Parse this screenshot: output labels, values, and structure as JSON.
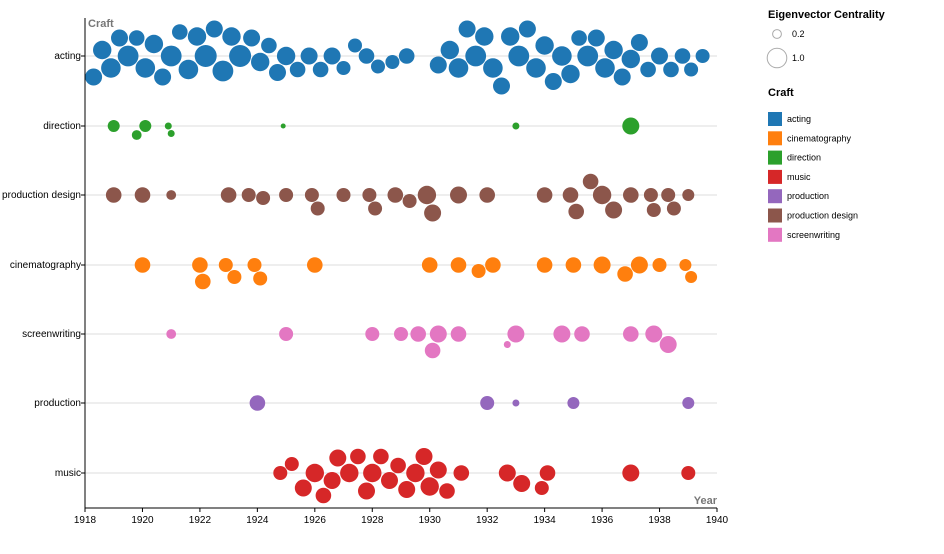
{
  "chart_data": {
    "type": "scatter",
    "subtype": "beeswarm",
    "x_axis": {
      "title": "Year",
      "domain": [
        1918,
        1940
      ],
      "ticks": [
        1918,
        1920,
        1922,
        1924,
        1926,
        1928,
        1930,
        1932,
        1934,
        1936,
        1938,
        1940
      ]
    },
    "y_axis": {
      "title": "Craft",
      "categories": [
        "acting",
        "direction",
        "production design",
        "cinematography",
        "screenwriting",
        "production",
        "music"
      ]
    },
    "size_legend": {
      "title": "Eigenvector Centrality",
      "entries": [
        {
          "label": "0.2",
          "value": 0.2
        },
        {
          "label": "1.0",
          "value": 1.0
        }
      ]
    },
    "color_legend": {
      "title": "Craft",
      "entries": [
        {
          "label": "acting",
          "color": "#1f77b4"
        },
        {
          "label": "cinematography",
          "color": "#ff7f0e"
        },
        {
          "label": "direction",
          "color": "#2ca02c"
        },
        {
          "label": "music",
          "color": "#d62728"
        },
        {
          "label": "production",
          "color": "#9467bd"
        },
        {
          "label": "production design",
          "color": "#8c564b"
        },
        {
          "label": "screenwriting",
          "color": "#e377c2"
        }
      ]
    },
    "legend_position": "right",
    "grid": "horizontal",
    "series": [
      {
        "name": "acting",
        "points": [
          [
            1918.3,
            0.6
          ],
          [
            1918.6,
            0.7
          ],
          [
            1918.9,
            0.8
          ],
          [
            1919.2,
            0.6
          ],
          [
            1919.5,
            0.9
          ],
          [
            1919.8,
            0.5
          ],
          [
            1920.1,
            0.8
          ],
          [
            1920.4,
            0.7
          ],
          [
            1920.7,
            0.6
          ],
          [
            1921.0,
            0.9
          ],
          [
            1921.3,
            0.5
          ],
          [
            1921.6,
            0.8
          ],
          [
            1921.9,
            0.7
          ],
          [
            1922.2,
            1.0
          ],
          [
            1922.5,
            0.6
          ],
          [
            1922.8,
            0.9
          ],
          [
            1923.1,
            0.7
          ],
          [
            1923.4,
            1.0
          ],
          [
            1923.8,
            0.6
          ],
          [
            1924.1,
            0.7
          ],
          [
            1924.4,
            0.5
          ],
          [
            1924.7,
            0.6
          ],
          [
            1925.0,
            0.7
          ],
          [
            1925.4,
            0.5
          ],
          [
            1925.8,
            0.6
          ],
          [
            1926.2,
            0.5
          ],
          [
            1926.6,
            0.6
          ],
          [
            1927.0,
            0.4
          ],
          [
            1927.4,
            0.4
          ],
          [
            1927.8,
            0.5
          ],
          [
            1928.2,
            0.4
          ],
          [
            1928.7,
            0.4
          ],
          [
            1929.2,
            0.5
          ],
          [
            1930.3,
            0.6
          ],
          [
            1930.7,
            0.7
          ],
          [
            1931.0,
            0.8
          ],
          [
            1931.3,
            0.6
          ],
          [
            1931.6,
            0.9
          ],
          [
            1931.9,
            0.7
          ],
          [
            1932.2,
            0.8
          ],
          [
            1932.5,
            0.6
          ],
          [
            1932.8,
            0.7
          ],
          [
            1933.1,
            0.9
          ],
          [
            1933.4,
            0.6
          ],
          [
            1933.7,
            0.8
          ],
          [
            1934.0,
            0.7
          ],
          [
            1934.3,
            0.6
          ],
          [
            1934.6,
            0.8
          ],
          [
            1934.9,
            0.7
          ],
          [
            1935.2,
            0.5
          ],
          [
            1935.5,
            0.9
          ],
          [
            1935.8,
            0.6
          ],
          [
            1936.1,
            0.8
          ],
          [
            1936.4,
            0.7
          ],
          [
            1936.7,
            0.6
          ],
          [
            1937.0,
            0.7
          ],
          [
            1937.3,
            0.6
          ],
          [
            1937.6,
            0.5
          ],
          [
            1938.0,
            0.6
          ],
          [
            1938.4,
            0.5
          ],
          [
            1938.8,
            0.5
          ],
          [
            1939.1,
            0.4
          ],
          [
            1939.5,
            0.4
          ]
        ]
      },
      {
        "name": "direction",
        "points": [
          [
            1919.0,
            0.3
          ],
          [
            1919.8,
            0.2
          ],
          [
            1920.1,
            0.3
          ],
          [
            1920.9,
            0.1
          ],
          [
            1921.0,
            0.1
          ],
          [
            1924.9,
            0.05
          ],
          [
            1933.0,
            0.1
          ],
          [
            1937.0,
            0.6
          ]
        ]
      },
      {
        "name": "production design",
        "points": [
          [
            1919.0,
            0.5
          ],
          [
            1920.0,
            0.5
          ],
          [
            1921.0,
            0.2
          ],
          [
            1923.0,
            0.5
          ],
          [
            1923.7,
            0.4
          ],
          [
            1924.2,
            0.4
          ],
          [
            1925.0,
            0.4
          ],
          [
            1925.9,
            0.4
          ],
          [
            1926.1,
            0.4
          ],
          [
            1927.0,
            0.4
          ],
          [
            1927.9,
            0.4
          ],
          [
            1928.1,
            0.4
          ],
          [
            1928.8,
            0.5
          ],
          [
            1929.3,
            0.4
          ],
          [
            1929.9,
            0.7
          ],
          [
            1930.1,
            0.6
          ],
          [
            1931.0,
            0.6
          ],
          [
            1932.0,
            0.5
          ],
          [
            1934.0,
            0.5
          ],
          [
            1934.9,
            0.5
          ],
          [
            1935.1,
            0.5
          ],
          [
            1935.6,
            0.5
          ],
          [
            1936.0,
            0.7
          ],
          [
            1936.4,
            0.6
          ],
          [
            1937.0,
            0.5
          ],
          [
            1937.7,
            0.4
          ],
          [
            1937.8,
            0.4
          ],
          [
            1938.3,
            0.4
          ],
          [
            1938.5,
            0.4
          ],
          [
            1939.0,
            0.3
          ]
        ]
      },
      {
        "name": "cinematography",
        "points": [
          [
            1920.0,
            0.5
          ],
          [
            1922.0,
            0.5
          ],
          [
            1922.1,
            0.5
          ],
          [
            1922.9,
            0.4
          ],
          [
            1923.2,
            0.4
          ],
          [
            1923.9,
            0.4
          ],
          [
            1924.1,
            0.4
          ],
          [
            1926.0,
            0.5
          ],
          [
            1930.0,
            0.5
          ],
          [
            1931.0,
            0.5
          ],
          [
            1931.7,
            0.4
          ],
          [
            1932.2,
            0.5
          ],
          [
            1934.0,
            0.5
          ],
          [
            1935.0,
            0.5
          ],
          [
            1936.0,
            0.6
          ],
          [
            1936.8,
            0.5
          ],
          [
            1937.3,
            0.6
          ],
          [
            1938.0,
            0.4
          ],
          [
            1938.9,
            0.3
          ],
          [
            1939.1,
            0.3
          ]
        ]
      },
      {
        "name": "screenwriting",
        "points": [
          [
            1921.0,
            0.2
          ],
          [
            1925.0,
            0.4
          ],
          [
            1928.0,
            0.4
          ],
          [
            1929.0,
            0.4
          ],
          [
            1929.6,
            0.5
          ],
          [
            1930.1,
            0.5
          ],
          [
            1930.3,
            0.6
          ],
          [
            1931.0,
            0.5
          ],
          [
            1932.7,
            0.1
          ],
          [
            1933.0,
            0.6
          ],
          [
            1934.6,
            0.6
          ],
          [
            1935.3,
            0.5
          ],
          [
            1937.0,
            0.5
          ],
          [
            1937.8,
            0.6
          ],
          [
            1938.3,
            0.6
          ]
        ]
      },
      {
        "name": "production",
        "points": [
          [
            1924.0,
            0.5
          ],
          [
            1932.0,
            0.4
          ],
          [
            1933.0,
            0.1
          ],
          [
            1935.0,
            0.3
          ],
          [
            1939.0,
            0.3
          ]
        ]
      },
      {
        "name": "music",
        "points": [
          [
            1924.8,
            0.4
          ],
          [
            1925.2,
            0.4
          ],
          [
            1925.6,
            0.6
          ],
          [
            1926.0,
            0.7
          ],
          [
            1926.3,
            0.5
          ],
          [
            1926.6,
            0.6
          ],
          [
            1926.8,
            0.6
          ],
          [
            1927.2,
            0.7
          ],
          [
            1927.5,
            0.5
          ],
          [
            1927.8,
            0.6
          ],
          [
            1928.0,
            0.7
          ],
          [
            1928.3,
            0.5
          ],
          [
            1928.6,
            0.6
          ],
          [
            1928.9,
            0.5
          ],
          [
            1929.2,
            0.6
          ],
          [
            1929.5,
            0.7
          ],
          [
            1929.8,
            0.6
          ],
          [
            1930.0,
            0.7
          ],
          [
            1930.3,
            0.6
          ],
          [
            1930.6,
            0.5
          ],
          [
            1931.1,
            0.5
          ],
          [
            1932.7,
            0.6
          ],
          [
            1933.2,
            0.6
          ],
          [
            1933.9,
            0.4
          ],
          [
            1934.1,
            0.5
          ],
          [
            1937.0,
            0.6
          ],
          [
            1939.0,
            0.4
          ]
        ]
      }
    ]
  }
}
